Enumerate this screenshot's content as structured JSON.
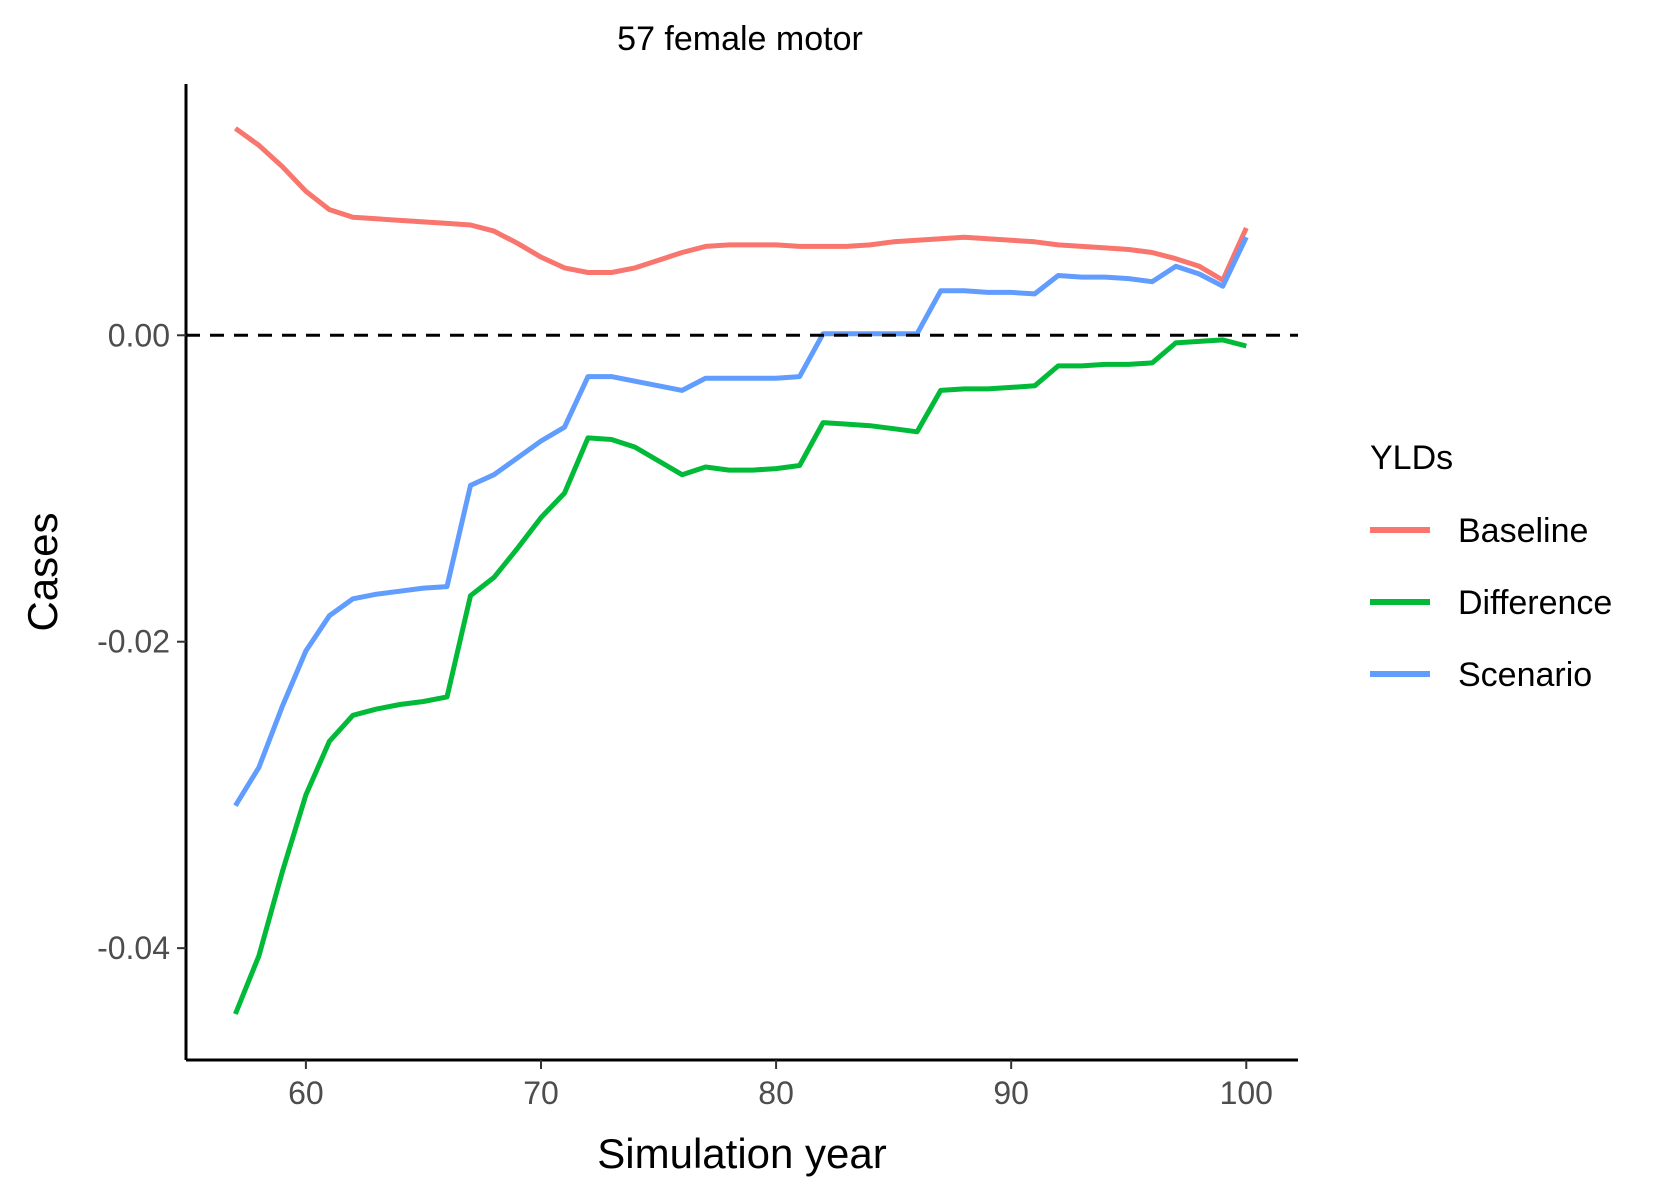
{
  "chart_data": {
    "type": "line",
    "title": "57 female motor",
    "xlabel": "Simulation year",
    "ylabel": "Cases",
    "xlim": [
      54.9,
      102.2
    ],
    "ylim": [
      -0.0473,
      0.0164
    ],
    "x_ticks": [
      60,
      70,
      80,
      90,
      100
    ],
    "x_tick_labels": [
      "60",
      "70",
      "80",
      "90",
      "100"
    ],
    "y_ticks": [
      0.0,
      -0.02,
      -0.04
    ],
    "y_tick_labels": [
      "0.00",
      "-0.02",
      "-0.04"
    ],
    "reference_line": {
      "y": 0.0,
      "style": "dashed",
      "color": "#000000"
    },
    "grid": false,
    "legend": {
      "title": "YLDs",
      "position": "right"
    },
    "x": [
      57,
      58,
      59,
      60,
      61,
      62,
      63,
      64,
      65,
      66,
      67,
      68,
      69,
      70,
      71,
      72,
      73,
      74,
      75,
      76,
      77,
      78,
      79,
      80,
      81,
      82,
      83,
      84,
      85,
      86,
      87,
      88,
      89,
      90,
      91,
      92,
      93,
      94,
      95,
      96,
      97,
      98,
      99,
      100
    ],
    "series": [
      {
        "name": "Baseline",
        "color": "#F8766D",
        "values": [
          0.0135,
          0.0124,
          0.011,
          0.0094,
          0.0082,
          0.0077,
          0.0076,
          0.0075,
          0.0074,
          0.0073,
          0.0072,
          0.0068,
          0.006,
          0.0051,
          0.0044,
          0.0041,
          0.0041,
          0.0044,
          0.0049,
          0.0054,
          0.0058,
          0.0059,
          0.0059,
          0.0059,
          0.0058,
          0.0058,
          0.0058,
          0.0059,
          0.0061,
          0.0062,
          0.0063,
          0.0064,
          0.0063,
          0.0062,
          0.0061,
          0.0059,
          0.0058,
          0.0057,
          0.0056,
          0.0054,
          0.005,
          0.0045,
          0.0036,
          0.007
        ]
      },
      {
        "name": "Difference",
        "color": "#00BA38",
        "values": [
          -0.0443,
          -0.0405,
          -0.035,
          -0.03,
          -0.0265,
          -0.0248,
          -0.0244,
          -0.0241,
          -0.0239,
          -0.0236,
          -0.017,
          -0.0158,
          -0.0139,
          -0.0119,
          -0.0103,
          -0.0067,
          -0.0068,
          -0.0073,
          -0.0082,
          -0.0091,
          -0.0086,
          -0.0088,
          -0.0088,
          -0.0087,
          -0.0085,
          -0.0057,
          -0.0058,
          -0.0059,
          -0.0061,
          -0.0063,
          -0.0036,
          -0.0035,
          -0.0035,
          -0.0034,
          -0.0033,
          -0.002,
          -0.002,
          -0.0019,
          -0.0019,
          -0.0018,
          -0.0005,
          -0.0004,
          -0.0003,
          -0.0007
        ]
      },
      {
        "name": "Scenario",
        "color": "#619CFF",
        "values": [
          -0.0307,
          -0.0282,
          -0.0242,
          -0.0206,
          -0.0183,
          -0.0172,
          -0.0169,
          -0.0167,
          -0.0165,
          -0.0164,
          -0.0098,
          -0.0091,
          -0.008,
          -0.0069,
          -0.006,
          -0.0027,
          -0.0027,
          -0.003,
          -0.0033,
          -0.0036,
          -0.0028,
          -0.0028,
          -0.0028,
          -0.0028,
          -0.0027,
          0.0001,
          0.0001,
          0.0001,
          0.0001,
          0.0001,
          0.0029,
          0.0029,
          0.0028,
          0.0028,
          0.0027,
          0.0039,
          0.0038,
          0.0038,
          0.0037,
          0.0035,
          0.0045,
          0.004,
          0.0032,
          0.0064
        ]
      }
    ]
  }
}
